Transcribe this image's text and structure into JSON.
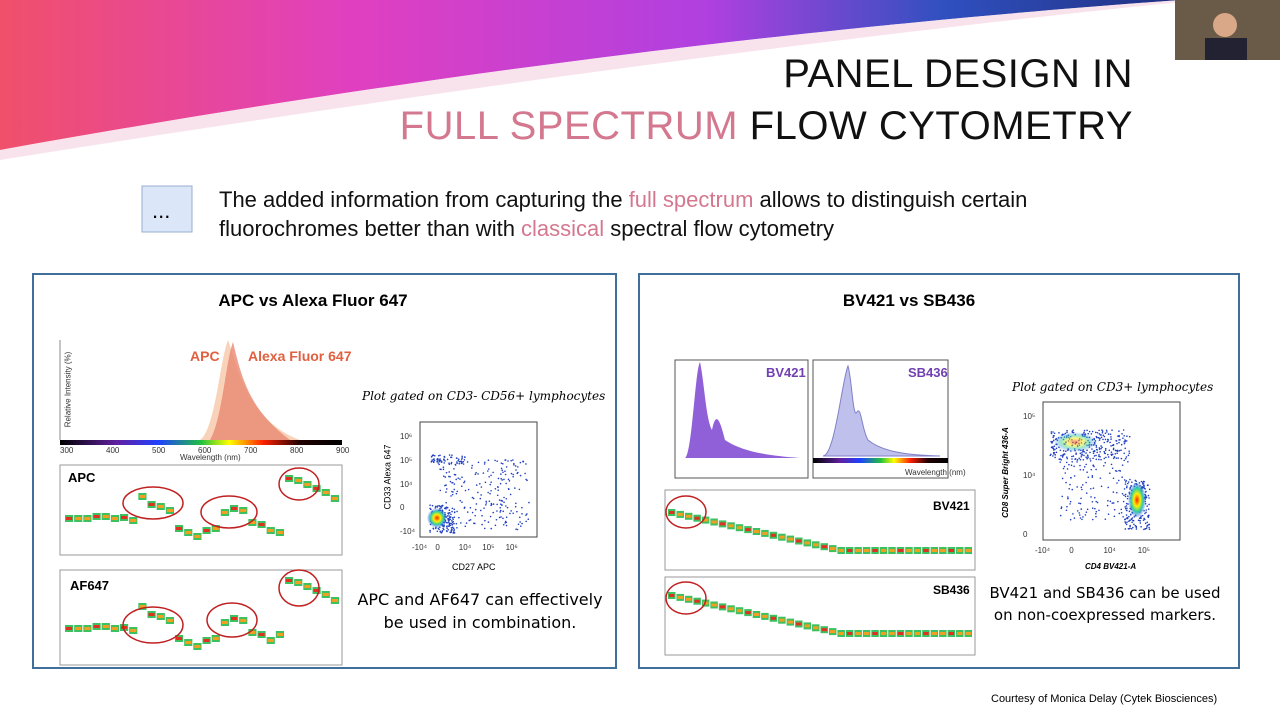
{
  "header": {
    "line1": "PANEL DESIGN IN",
    "highlight": "FULL SPECTRUM",
    "rest": "FLOW CYTOMETRY"
  },
  "bullet": {
    "icon": "...",
    "parts": [
      "The added information from capturing the ",
      "full spectrum",
      " allows to distinguish certain fluorochromes better than with ",
      "classical",
      " spectral flow cytometry"
    ]
  },
  "panels": [
    {
      "title": "APC vs Alexa Fluor 647",
      "spectrum": {
        "labels": [
          "APC",
          "Alexa Fluor 647"
        ],
        "ylabel": "Relative Intensity (%)",
        "xlabel": "Wavelength (nm)",
        "xticks": [
          "300",
          "400",
          "500",
          "600",
          "700",
          "800",
          "900"
        ]
      },
      "channels": [
        "APC",
        "AF647"
      ],
      "gate": "Plot gated on CD3- CD56+ lymphocytes",
      "scatter": {
        "ylabel": "CD33 Alexa 647",
        "xlabel": "CD27 APC",
        "xticks": [
          "-10⁴",
          "0",
          "10⁴",
          "10⁵",
          "10⁶"
        ],
        "yticks": [
          "10⁶",
          "10⁵",
          "10⁴",
          "0",
          "-10⁴"
        ]
      },
      "caption": "APC and AF647 can effectively be used in combination."
    },
    {
      "title": "BV421 vs SB436",
      "spectrum": {
        "labels": [
          "BV421",
          "SB436"
        ],
        "xlabel": "Wavelength (nm)"
      },
      "channels": [
        "BV421",
        "SB436"
      ],
      "gate": "Plot gated on CD3+ lymphocytes",
      "scatter": {
        "ylabel": "CD8 Super Bright 436-A",
        "xlabel": "CD4 BV421-A",
        "xticks": [
          "-10⁴",
          "0",
          "10⁴",
          "10⁵"
        ],
        "yticks": [
          "10⁵",
          "10⁴",
          "0"
        ]
      },
      "caption": "BV421 and SB436 can be used on non-coexpressed markers."
    }
  ],
  "footer": "Courtesy of Monica Delay (Cytek Biosciences)"
}
